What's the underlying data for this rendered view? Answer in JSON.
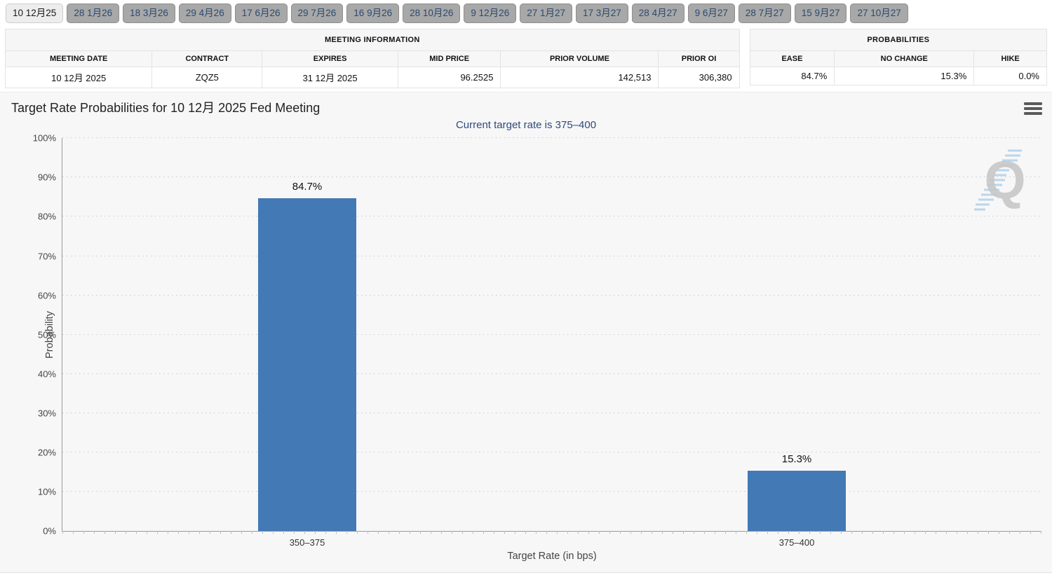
{
  "tabs": [
    {
      "label": "10 12月25",
      "selected": true
    },
    {
      "label": "28 1月26",
      "selected": false
    },
    {
      "label": "18 3月26",
      "selected": false
    },
    {
      "label": "29 4月26",
      "selected": false
    },
    {
      "label": "17 6月26",
      "selected": false
    },
    {
      "label": "29 7月26",
      "selected": false
    },
    {
      "label": "16 9月26",
      "selected": false
    },
    {
      "label": "28 10月26",
      "selected": false
    },
    {
      "label": "9 12月26",
      "selected": false
    },
    {
      "label": "27 1月27",
      "selected": false
    },
    {
      "label": "17 3月27",
      "selected": false
    },
    {
      "label": "28 4月27",
      "selected": false
    },
    {
      "label": "9 6月27",
      "selected": false
    },
    {
      "label": "28 7月27",
      "selected": false
    },
    {
      "label": "15 9月27",
      "selected": false
    },
    {
      "label": "27 10月27",
      "selected": false
    }
  ],
  "meeting_info": {
    "title": "MEETING INFORMATION",
    "columns": [
      "MEETING DATE",
      "CONTRACT",
      "EXPIRES",
      "MID PRICE",
      "PRIOR VOLUME",
      "PRIOR OI"
    ],
    "row": [
      "10 12月 2025",
      "ZQZ5",
      "31 12月 2025",
      "96.2525",
      "142,513",
      "306,380"
    ]
  },
  "probabilities": {
    "title": "PROBABILITIES",
    "columns": [
      "EASE",
      "NO CHANGE",
      "HIKE"
    ],
    "row": [
      "84.7%",
      "15.3%",
      "0.0%"
    ]
  },
  "icons": {
    "menu": "hamburger-menu"
  },
  "watermark": {
    "letter": "Q"
  },
  "colors": {
    "bar": "#4379b4",
    "subtitle_text": "#2e4a7c",
    "tab_text": "#2b4a70",
    "panel_background": "#f7f7f7"
  },
  "chart_data": {
    "type": "bar",
    "title": "Target Rate Probabilities for 10 12月 2025 Fed Meeting",
    "subtitle": "Current target rate is 375–400",
    "categories": [
      "350–375",
      "375–400"
    ],
    "values": [
      84.7,
      15.3
    ],
    "value_labels": [
      "84.7%",
      "15.3%"
    ],
    "xlabel": "Target Rate (in bps)",
    "ylabel": "Probability",
    "ylim": [
      0,
      100
    ],
    "ytick_step": 10,
    "ytick_suffix": "%",
    "grid": "dotted-horizontal",
    "legend": "none",
    "bar_color": "#4379b4",
    "bar_width_pct": 10
  }
}
